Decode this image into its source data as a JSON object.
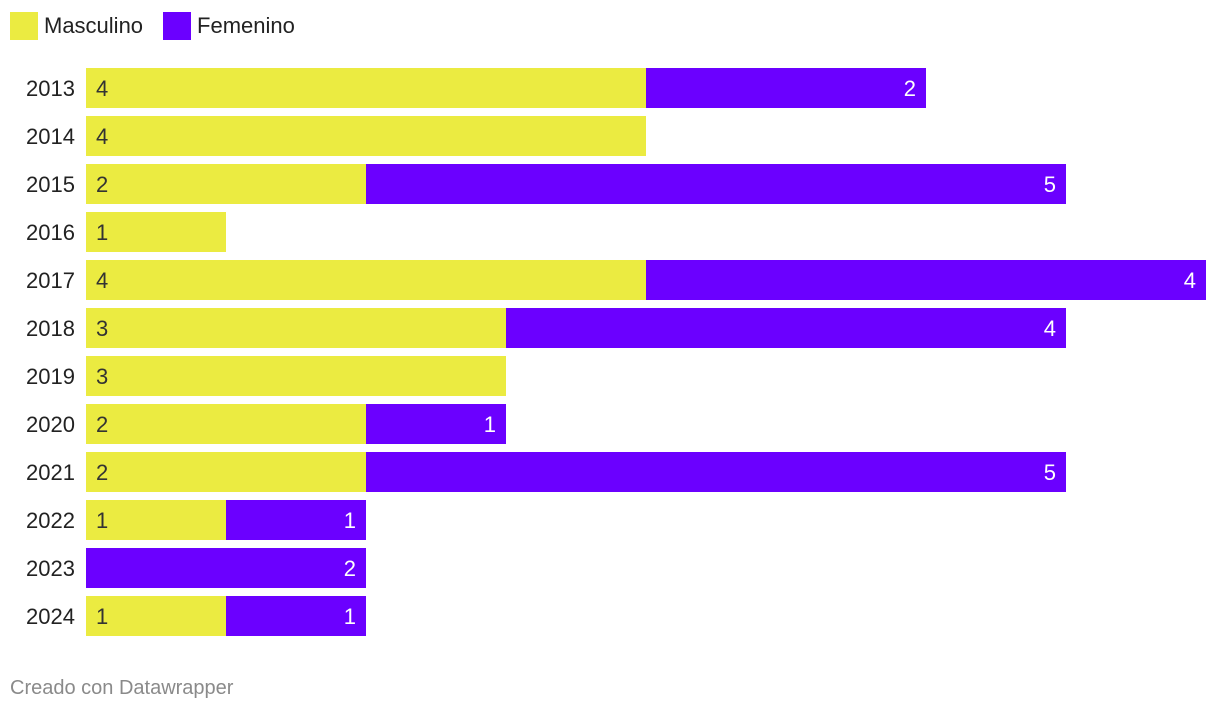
{
  "chart_data": {
    "type": "bar",
    "orientation": "horizontal",
    "stacked": true,
    "categories": [
      "2013",
      "2014",
      "2015",
      "2016",
      "2017",
      "2018",
      "2019",
      "2020",
      "2021",
      "2022",
      "2023",
      "2024"
    ],
    "series": [
      {
        "name": "Masculino",
        "color": "#ebeb41",
        "values": [
          4,
          4,
          2,
          1,
          4,
          3,
          3,
          2,
          2,
          1,
          0,
          1
        ]
      },
      {
        "name": "Femenino",
        "color": "#6b00ff",
        "values": [
          2,
          0,
          5,
          0,
          4,
          4,
          0,
          1,
          5,
          1,
          2,
          1
        ]
      }
    ],
    "xlim": [
      0,
      8
    ],
    "grid": false,
    "legend_position": "top-left"
  },
  "footer": {
    "credit": "Creado con Datawrapper"
  }
}
